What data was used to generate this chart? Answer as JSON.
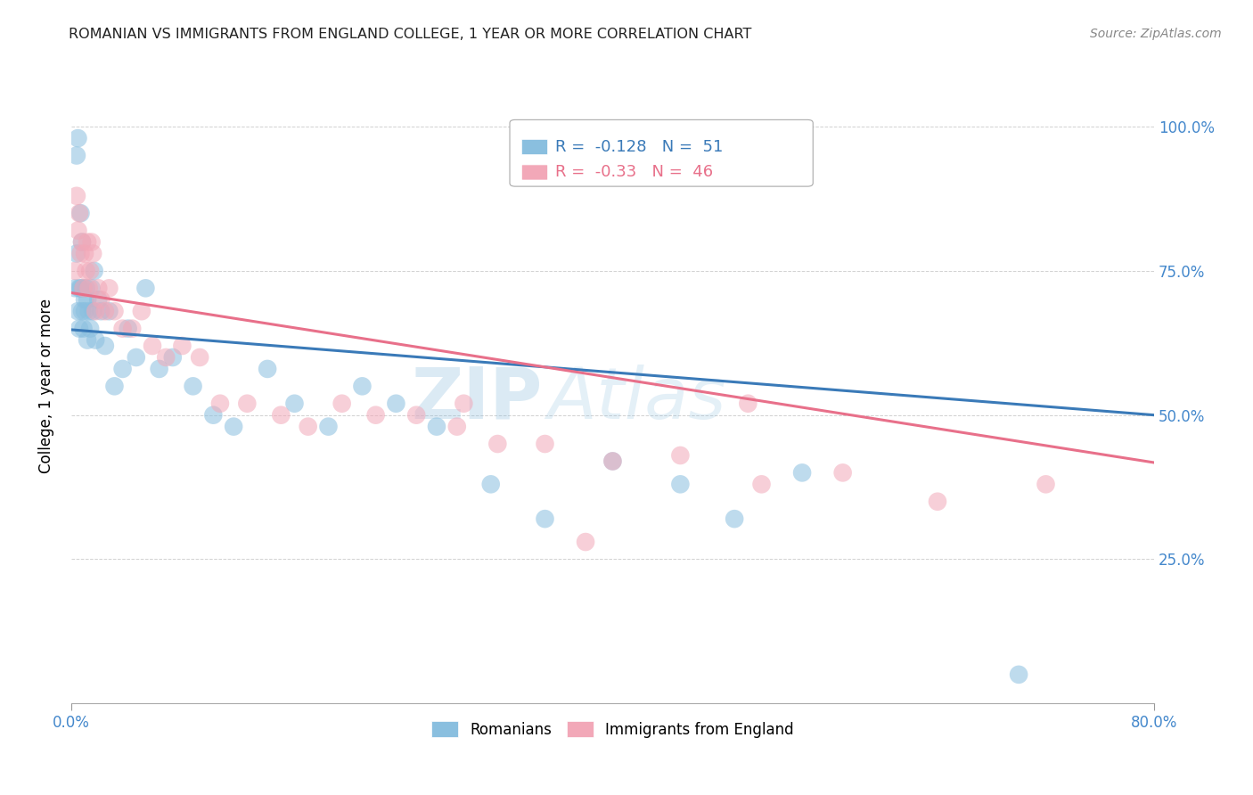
{
  "title": "ROMANIAN VS IMMIGRANTS FROM ENGLAND COLLEGE, 1 YEAR OR MORE CORRELATION CHART",
  "source": "Source: ZipAtlas.com",
  "ylabel": "College, 1 year or more",
  "xlim": [
    0.0,
    0.8
  ],
  "ylim": [
    0.0,
    1.1
  ],
  "xtick_labels": [
    "0.0%",
    "80.0%"
  ],
  "xtick_positions": [
    0.0,
    0.8
  ],
  "ytick_labels": [
    "25.0%",
    "50.0%",
    "75.0%",
    "100.0%"
  ],
  "ytick_positions": [
    0.25,
    0.5,
    0.75,
    1.0
  ],
  "blue_color": "#8abfdf",
  "pink_color": "#f2a8b8",
  "blue_line_color": "#3a7ab8",
  "pink_line_color": "#e8708a",
  "watermark_zip": "ZIP",
  "watermark_atlas": "Atlas",
  "blue_R": -0.128,
  "blue_N": 51,
  "pink_R": -0.33,
  "pink_N": 46,
  "blue_intercept": 0.648,
  "blue_slope": -0.185,
  "pink_intercept": 0.712,
  "pink_slope": -0.368,
  "romanians_x": [
    0.003,
    0.004,
    0.004,
    0.005,
    0.005,
    0.006,
    0.006,
    0.007,
    0.007,
    0.008,
    0.008,
    0.009,
    0.009,
    0.01,
    0.01,
    0.011,
    0.012,
    0.012,
    0.013,
    0.014,
    0.015,
    0.016,
    0.017,
    0.018,
    0.02,
    0.022,
    0.025,
    0.028,
    0.032,
    0.038,
    0.042,
    0.048,
    0.055,
    0.065,
    0.075,
    0.09,
    0.105,
    0.12,
    0.145,
    0.165,
    0.19,
    0.215,
    0.24,
    0.27,
    0.31,
    0.35,
    0.4,
    0.45,
    0.49,
    0.54,
    0.7
  ],
  "romanians_y": [
    0.72,
    0.95,
    0.78,
    0.68,
    0.98,
    0.65,
    0.72,
    0.85,
    0.72,
    0.68,
    0.8,
    0.72,
    0.65,
    0.7,
    0.68,
    0.72,
    0.7,
    0.63,
    0.68,
    0.65,
    0.72,
    0.68,
    0.75,
    0.63,
    0.7,
    0.68,
    0.62,
    0.68,
    0.55,
    0.58,
    0.65,
    0.6,
    0.72,
    0.58,
    0.6,
    0.55,
    0.5,
    0.48,
    0.58,
    0.52,
    0.48,
    0.55,
    0.52,
    0.48,
    0.38,
    0.32,
    0.42,
    0.38,
    0.32,
    0.4,
    0.05
  ],
  "england_x": [
    0.003,
    0.004,
    0.005,
    0.006,
    0.007,
    0.008,
    0.009,
    0.01,
    0.011,
    0.012,
    0.013,
    0.014,
    0.015,
    0.016,
    0.018,
    0.02,
    0.022,
    0.025,
    0.028,
    0.032,
    0.038,
    0.045,
    0.052,
    0.06,
    0.07,
    0.082,
    0.095,
    0.11,
    0.13,
    0.155,
    0.175,
    0.2,
    0.225,
    0.255,
    0.285,
    0.315,
    0.35,
    0.4,
    0.45,
    0.51,
    0.57,
    0.64,
    0.72,
    0.5,
    0.38,
    0.29
  ],
  "england_y": [
    0.75,
    0.88,
    0.82,
    0.85,
    0.78,
    0.8,
    0.72,
    0.78,
    0.75,
    0.8,
    0.72,
    0.75,
    0.8,
    0.78,
    0.68,
    0.72,
    0.7,
    0.68,
    0.72,
    0.68,
    0.65,
    0.65,
    0.68,
    0.62,
    0.6,
    0.62,
    0.6,
    0.52,
    0.52,
    0.5,
    0.48,
    0.52,
    0.5,
    0.5,
    0.48,
    0.45,
    0.45,
    0.42,
    0.43,
    0.38,
    0.4,
    0.35,
    0.38,
    0.52,
    0.28,
    0.52
  ]
}
